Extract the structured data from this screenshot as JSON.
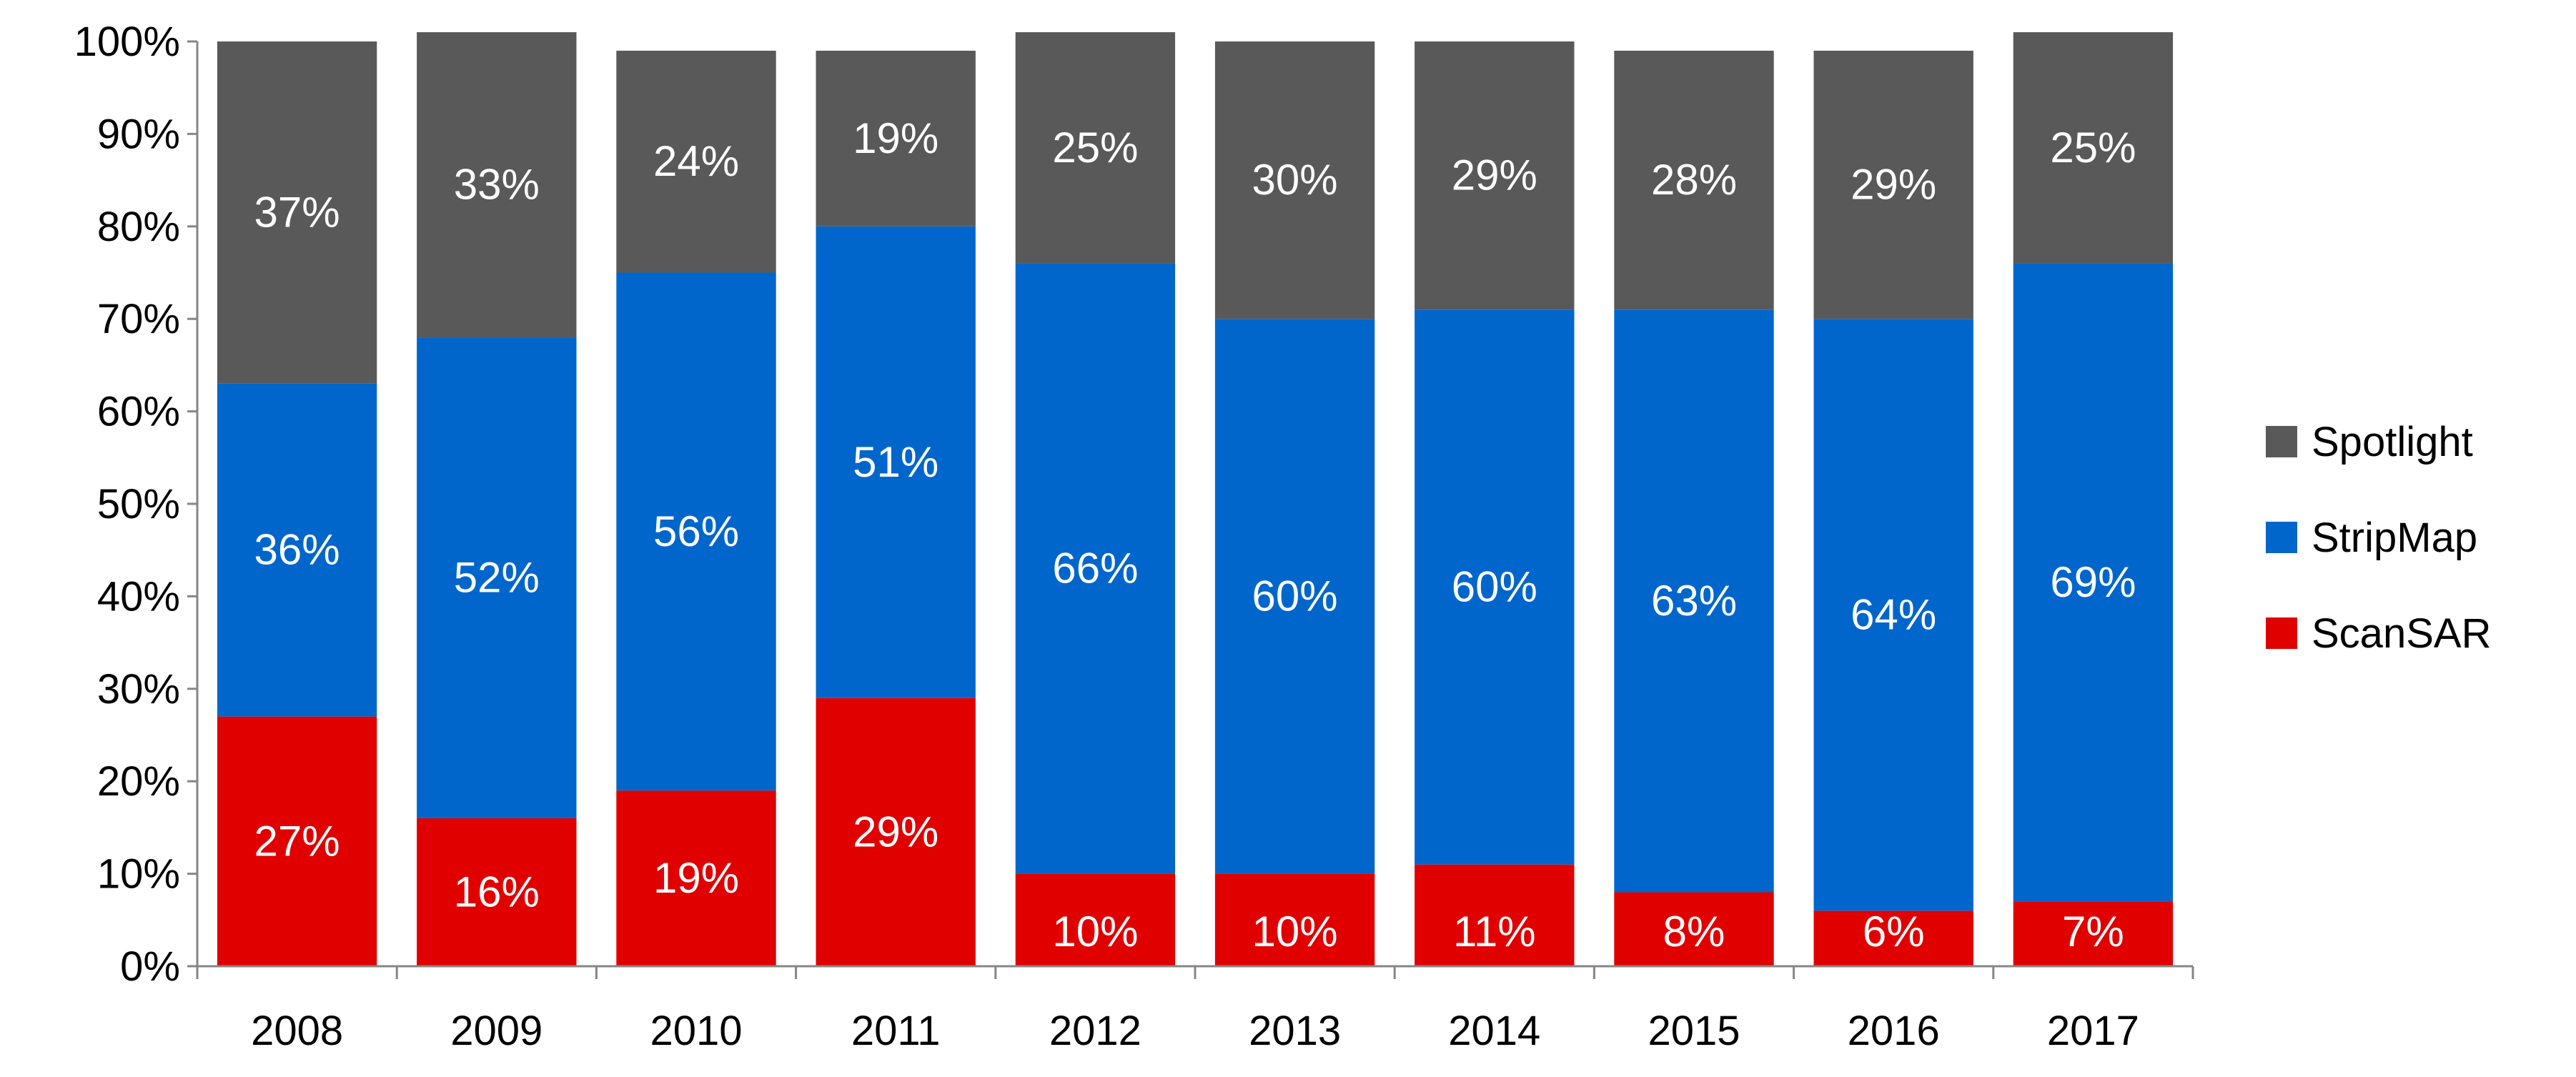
{
  "chart_data": {
    "type": "bar",
    "stacked": true,
    "categories": [
      "2008",
      "2009",
      "2010",
      "2011",
      "2012",
      "2013",
      "2014",
      "2015",
      "2016",
      "2017"
    ],
    "series": [
      {
        "name": "ScanSAR",
        "color": "#e00000",
        "values": [
          27,
          16,
          19,
          29,
          10,
          10,
          11,
          8,
          6,
          7
        ],
        "labels": [
          "27%",
          "16%",
          "19%",
          "29%",
          "10%",
          "10%",
          "11%",
          "8%",
          "6%",
          "7%"
        ]
      },
      {
        "name": "StripMap",
        "color": "#0066cc",
        "values": [
          36,
          52,
          56,
          51,
          66,
          60,
          60,
          63,
          64,
          69
        ],
        "labels": [
          "36%",
          "52%",
          "56%",
          "51%",
          "66%",
          "60%",
          "60%",
          "63%",
          "64%",
          "69%"
        ]
      },
      {
        "name": "Spotlight",
        "color": "#595959",
        "values": [
          37,
          33,
          24,
          19,
          25,
          30,
          29,
          28,
          29,
          25
        ],
        "labels": [
          "37%",
          "33%",
          "24%",
          "19%",
          "25%",
          "30%",
          "29%",
          "28%",
          "29%",
          "25%"
        ]
      }
    ],
    "ylim": [
      0,
      100
    ],
    "yticks": [
      "0%",
      "10%",
      "20%",
      "30%",
      "40%",
      "50%",
      "60%",
      "70%",
      "80%",
      "90%",
      "100%"
    ],
    "legend": {
      "position": "right",
      "order": [
        "Spotlight",
        "StripMap",
        "ScanSAR"
      ]
    },
    "grid": false,
    "title": "",
    "xlabel": "",
    "ylabel": ""
  }
}
